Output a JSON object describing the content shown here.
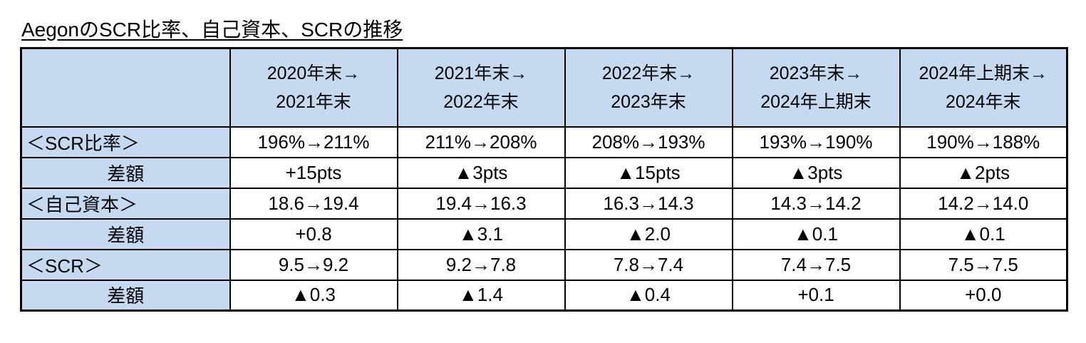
{
  "title": "AegonのSCR比率、自己資本、SCRの推移",
  "colors": {
    "header_fill": "#c5d9f1",
    "border": "#000000",
    "background": "#ffffff",
    "text": "#000000"
  },
  "chart_data": {
    "type": "table",
    "title": "AegonのSCR比率、自己資本、SCRの推移",
    "column_headers": [
      [
        "2020年末→",
        "2021年末"
      ],
      [
        "2021年末→",
        "2022年末"
      ],
      [
        "2022年末→",
        "2023年末"
      ],
      [
        "2023年末→",
        "2024年上期末"
      ],
      [
        "2024年上期末→",
        "2024年末"
      ]
    ],
    "rows": [
      {
        "label": "＜SCR比率＞",
        "cells": [
          "196%→211%",
          "211%→208%",
          "208%→193%",
          "193%→190%",
          "190%→188%"
        ]
      },
      {
        "label": "差額",
        "cells": [
          "+15pts",
          "▲3pts",
          "▲15pts",
          "▲3pts",
          "▲2pts"
        ]
      },
      {
        "label": "＜自己資本＞",
        "cells": [
          "18.6→19.4",
          "19.4→16.3",
          "16.3→14.3",
          "14.3→14.2",
          "14.2→14.0"
        ]
      },
      {
        "label": "差額",
        "cells": [
          "+0.8",
          "▲3.1",
          "▲2.0",
          "▲0.1",
          "▲0.1"
        ]
      },
      {
        "label": "＜SCR＞",
        "cells": [
          "9.5→9.2",
          "9.2→7.8",
          "7.8→7.4",
          "7.4→7.5",
          "7.5→7.5"
        ]
      },
      {
        "label": "差額",
        "cells": [
          "▲0.3",
          "▲1.4",
          "▲0.4",
          "+0.1",
          "+0.0"
        ]
      }
    ]
  }
}
